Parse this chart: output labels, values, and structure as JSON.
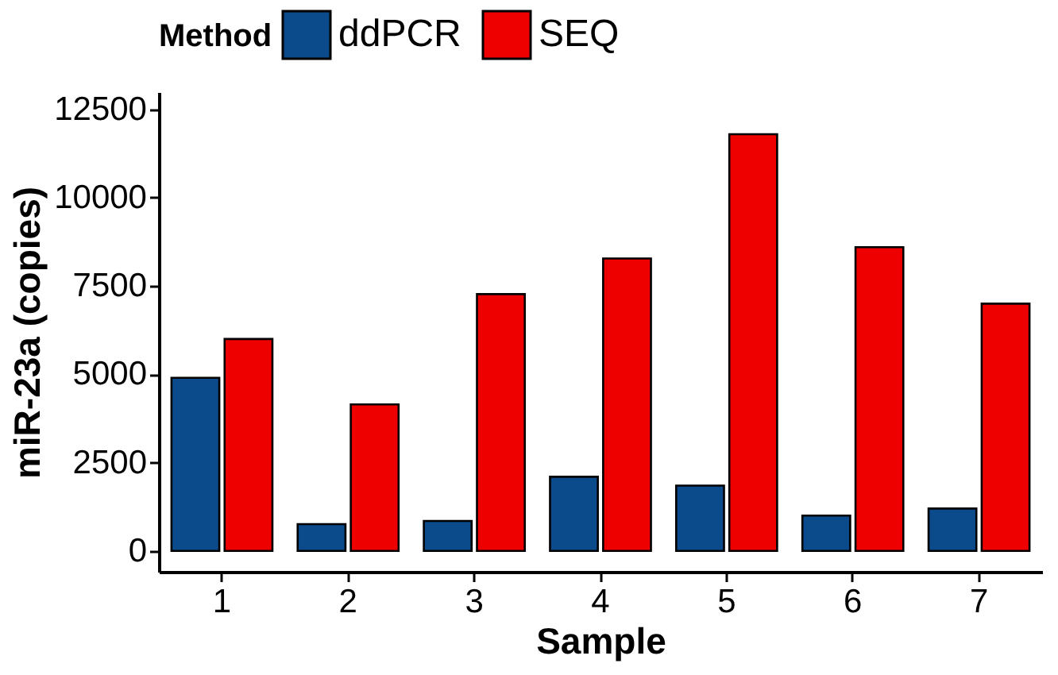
{
  "chart_data": {
    "type": "bar",
    "xlabel": "Sample",
    "ylabel": "miR-23a (copies)",
    "legend_title": "Method",
    "legend": "top",
    "categories": [
      "1",
      "2",
      "3",
      "4",
      "5",
      "6",
      "7"
    ],
    "series": [
      {
        "name": "ddPCR",
        "color": "#0b4a8b",
        "values": [
          4900,
          760,
          850,
          2100,
          1850,
          1000,
          1200
        ]
      },
      {
        "name": "SEQ",
        "color": "#ee0000",
        "values": [
          6000,
          4150,
          7270,
          8280,
          11800,
          8600,
          7000
        ]
      }
    ],
    "ylim": [
      -590,
      12990
    ],
    "yticks": [
      0,
      2500,
      5000,
      7500,
      10000,
      12500
    ],
    "grid": false
  }
}
